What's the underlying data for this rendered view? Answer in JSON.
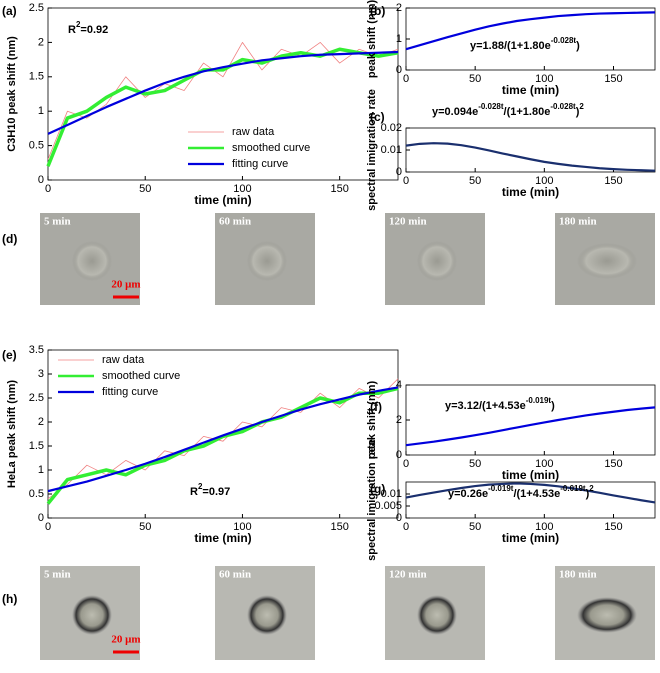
{
  "chart_data": [
    {
      "type": "line",
      "label": "(a)",
      "ylabel": "C3H10 peak shift (nm)",
      "xlabel": "time (min)",
      "annotation": [
        "R",
        "2",
        "=0.92"
      ],
      "x": [
        0,
        10,
        20,
        30,
        40,
        50,
        60,
        70,
        80,
        90,
        100,
        110,
        120,
        130,
        140,
        150,
        160,
        170,
        180
      ],
      "series": [
        {
          "name": "raw data",
          "color": "#f08080",
          "width": 0.8,
          "values": [
            0.3,
            1.0,
            0.9,
            1.1,
            1.5,
            1.2,
            1.4,
            1.3,
            1.7,
            1.5,
            2.0,
            1.6,
            1.9,
            1.8,
            2.0,
            1.7,
            1.9,
            1.8,
            1.9
          ]
        },
        {
          "name": "smoothed curve",
          "color": "#33ee33",
          "width": 3.5,
          "values": [
            0.2,
            0.9,
            1.0,
            1.2,
            1.35,
            1.25,
            1.3,
            1.45,
            1.6,
            1.6,
            1.75,
            1.7,
            1.8,
            1.85,
            1.8,
            1.9,
            1.85,
            1.8,
            1.85
          ]
        },
        {
          "name": "fitting curve",
          "color": "#0000dd",
          "width": 2.2,
          "values": [
            0.67,
            0.8,
            0.93,
            1.06,
            1.18,
            1.3,
            1.41,
            1.5,
            1.58,
            1.64,
            1.69,
            1.74,
            1.77,
            1.8,
            1.82,
            1.83,
            1.84,
            1.85,
            1.86
          ]
        }
      ],
      "xlim": [
        0,
        180
      ],
      "xticks": [
        0,
        50,
        100,
        150
      ],
      "ylim": [
        0,
        2.5
      ],
      "yticks": [
        0,
        0.5,
        1,
        1.5,
        2,
        2.5
      ],
      "legend": "lower right"
    },
    {
      "type": "line",
      "label": "(b)",
      "ylabel": "peak shift (nm)",
      "xlabel": "time (min)",
      "annotation": [
        "y=1.88/(1+1.80e",
        "-0.028t",
        ")"
      ],
      "x": [
        0,
        10,
        20,
        30,
        40,
        50,
        60,
        70,
        80,
        90,
        100,
        110,
        120,
        130,
        140,
        150,
        160,
        170,
        180
      ],
      "series": [
        {
          "color": "#0000dd",
          "width": 2.2,
          "values": [
            0.67,
            0.8,
            0.93,
            1.06,
            1.18,
            1.3,
            1.41,
            1.5,
            1.58,
            1.64,
            1.69,
            1.74,
            1.77,
            1.8,
            1.82,
            1.83,
            1.84,
            1.85,
            1.86
          ]
        }
      ],
      "xlim": [
        0,
        180
      ],
      "xticks": [
        0,
        50,
        100,
        150
      ],
      "ylim": [
        0,
        2
      ],
      "yticks": [
        0,
        1,
        2
      ]
    },
    {
      "type": "line",
      "label": "(c)",
      "ylabel": "spectral imigration rate",
      "xlabel": "time (min)",
      "annotation": [
        "y=0.094e",
        "-0.028t",
        "/(1+1.80e",
        "-0.028t",
        ")",
        "2"
      ],
      "x": [
        0,
        10,
        20,
        30,
        40,
        50,
        60,
        70,
        80,
        90,
        100,
        110,
        120,
        130,
        140,
        150,
        160,
        170,
        180
      ],
      "series": [
        {
          "color": "#1a2f6e",
          "width": 2.2,
          "values": [
            0.012,
            0.0128,
            0.0131,
            0.0129,
            0.0122,
            0.0111,
            0.0098,
            0.0084,
            0.0071,
            0.0058,
            0.0046,
            0.0037,
            0.0029,
            0.0023,
            0.0017,
            0.0013,
            0.001,
            0.0008,
            0.0006
          ]
        }
      ],
      "xlim": [
        0,
        180
      ],
      "xticks": [
        0,
        50,
        100,
        150
      ],
      "ylim": [
        0,
        0.02
      ],
      "yticks": [
        0,
        0.01,
        0.02
      ]
    },
    {
      "type": "line",
      "label": "(e)",
      "ylabel": "HeLa peak shift (nm)",
      "xlabel": "time (min)",
      "annotation": [
        "R",
        "2",
        "=0.97"
      ],
      "x": [
        0,
        10,
        20,
        30,
        40,
        50,
        60,
        70,
        80,
        90,
        100,
        110,
        120,
        130,
        140,
        150,
        160,
        170,
        180
      ],
      "series": [
        {
          "name": "raw data",
          "color": "#f08080",
          "width": 0.8,
          "values": [
            0.4,
            0.7,
            1.1,
            0.9,
            1.2,
            1.0,
            1.4,
            1.3,
            1.7,
            1.6,
            2.0,
            1.9,
            2.3,
            2.2,
            2.6,
            2.3,
            2.7,
            2.5,
            2.9
          ]
        },
        {
          "name": "smoothed curve",
          "color": "#33ee33",
          "width": 3.5,
          "values": [
            0.3,
            0.8,
            0.9,
            1.0,
            0.9,
            1.1,
            1.2,
            1.4,
            1.5,
            1.7,
            1.8,
            2.0,
            2.1,
            2.3,
            2.5,
            2.4,
            2.6,
            2.6,
            2.7
          ]
        },
        {
          "name": "fitting curve",
          "color": "#0000dd",
          "width": 2.2,
          "values": [
            0.56,
            0.66,
            0.76,
            0.88,
            1.0,
            1.13,
            1.27,
            1.42,
            1.57,
            1.72,
            1.86,
            2.0,
            2.13,
            2.26,
            2.37,
            2.47,
            2.57,
            2.65,
            2.72
          ]
        }
      ],
      "xlim": [
        0,
        180
      ],
      "xticks": [
        0,
        50,
        100,
        150
      ],
      "ylim": [
        0,
        3.5
      ],
      "yticks": [
        0,
        0.5,
        1,
        1.5,
        2,
        2.5,
        3,
        3.5
      ],
      "legend": "upper left"
    },
    {
      "type": "line",
      "label": "(f)",
      "ylabel": "peak shift (nm)",
      "xlabel": "time (min)",
      "annotation": [
        "y=3.12/(1+4.53e",
        "-0.019t",
        ")"
      ],
      "x": [
        0,
        10,
        20,
        30,
        40,
        50,
        60,
        70,
        80,
        90,
        100,
        110,
        120,
        130,
        140,
        150,
        160,
        170,
        180
      ],
      "series": [
        {
          "color": "#0000dd",
          "width": 2.2,
          "values": [
            0.56,
            0.66,
            0.76,
            0.88,
            1.0,
            1.13,
            1.27,
            1.42,
            1.57,
            1.72,
            1.86,
            2.0,
            2.13,
            2.26,
            2.37,
            2.47,
            2.57,
            2.65,
            2.72
          ]
        }
      ],
      "xlim": [
        0,
        180
      ],
      "xticks": [
        0,
        50,
        100,
        150
      ],
      "ylim": [
        0,
        4
      ],
      "yticks": [
        0,
        2,
        4
      ]
    },
    {
      "type": "line",
      "label": "(g)",
      "ylabel": "spectral imigration rate",
      "xlabel": "time (min)",
      "annotation": [
        "y=0.26e",
        "-0.019t",
        "/(1+4.53e",
        "-0.019t",
        ")",
        "2"
      ],
      "x": [
        0,
        10,
        20,
        30,
        40,
        50,
        60,
        70,
        80,
        90,
        100,
        110,
        120,
        130,
        140,
        150,
        160,
        170,
        180
      ],
      "series": [
        {
          "color": "#1a2f6e",
          "width": 2.2,
          "values": [
            0.0085,
            0.0096,
            0.0106,
            0.0116,
            0.0125,
            0.0133,
            0.0139,
            0.0142,
            0.0144,
            0.0142,
            0.0138,
            0.0132,
            0.0124,
            0.0115,
            0.0105,
            0.0094,
            0.0084,
            0.0074,
            0.0065
          ]
        }
      ],
      "xlim": [
        0,
        180
      ],
      "xticks": [
        0,
        50,
        100,
        150
      ],
      "ylim": [
        0,
        0.015
      ],
      "yticks": [
        0,
        0.005,
        0.01
      ]
    }
  ],
  "panels": [
    {
      "label": "(d)",
      "images": [
        "5 min",
        "60 min",
        "120 min",
        "180 min"
      ],
      "scale_bar": "20 μm"
    },
    {
      "label": "(h)",
      "images": [
        "5 min",
        "60 min",
        "120 min",
        "180 min"
      ],
      "scale_bar": "20 μm"
    }
  ]
}
